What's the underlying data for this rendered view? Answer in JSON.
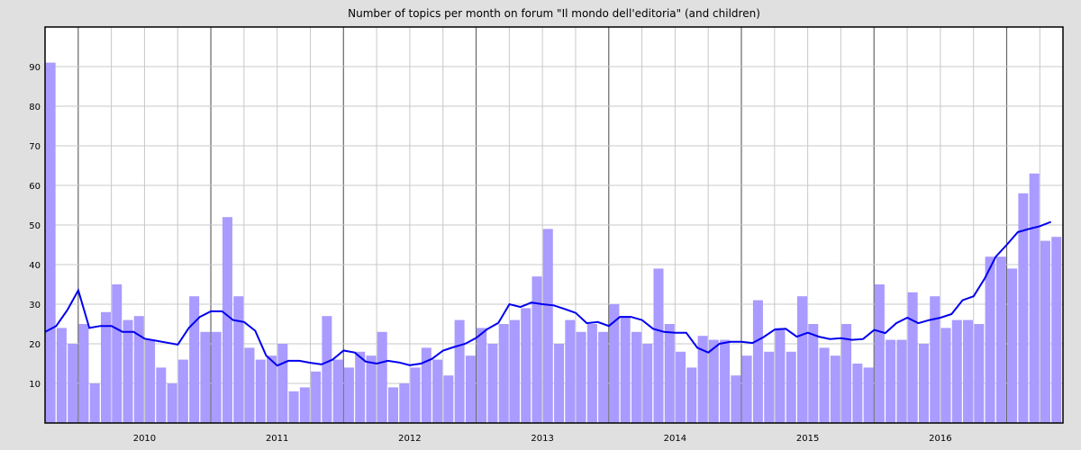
{
  "chart_data": {
    "type": "bar",
    "title": "Number of topics per month on forum \"Il mondo dell'editoria\" (and children)",
    "ylim": [
      0,
      100
    ],
    "yticks": [
      10,
      20,
      30,
      40,
      50,
      60,
      70,
      80,
      90
    ],
    "years": [
      "2010",
      "2011",
      "2012",
      "2013",
      "2014",
      "2015",
      "2016"
    ],
    "grid": true,
    "series": [
      {
        "type": "bar",
        "values": [
          91,
          24,
          20,
          25,
          10,
          28,
          35,
          26,
          27,
          21,
          14,
          10,
          16,
          32,
          23,
          23,
          52,
          32,
          19,
          16,
          17,
          20,
          8,
          9,
          13,
          27,
          16,
          14,
          18,
          17,
          23,
          9,
          10,
          14,
          19,
          16,
          12,
          26,
          17,
          24,
          20,
          25,
          26,
          29,
          37,
          49,
          20,
          26,
          23,
          25,
          23,
          30,
          27,
          23,
          20,
          39,
          25,
          18,
          14,
          22,
          21,
          21,
          12,
          17,
          31,
          18,
          24,
          18,
          32,
          25,
          19,
          17,
          25,
          15,
          14,
          35,
          21,
          21,
          33,
          20,
          32,
          24,
          26,
          26,
          25,
          42,
          42,
          39,
          58,
          63,
          46,
          47
        ]
      },
      {
        "type": "line",
        "values": [
          23,
          24.5,
          28.5,
          33.5,
          24,
          24.5,
          24.5,
          23,
          23,
          21.3,
          20.8,
          20.3,
          19.8,
          24,
          26.8,
          28.2,
          28.2,
          26,
          25.5,
          23.3,
          17,
          14.5,
          15.7,
          15.7,
          15.2,
          14.8,
          16,
          18.3,
          17.8,
          15.5,
          15,
          15.7,
          15.3,
          14.6,
          15,
          16.2,
          18.3,
          19.2,
          20,
          21.5,
          23.7,
          25.3,
          30,
          29.3,
          30.4,
          30,
          29.7,
          28.8,
          27.8,
          25.2,
          25.5,
          24.5,
          26.8,
          26.8,
          26,
          23.8,
          23,
          22.8,
          22.8,
          19,
          17.8,
          20,
          20.5,
          20.5,
          20.2,
          21.7,
          23.6,
          23.8,
          21.8,
          22.8,
          21.8,
          21.2,
          21.4,
          21,
          21.2,
          23.5,
          22.7,
          25.2,
          26.6,
          25.2,
          26,
          26.6,
          27.5,
          31,
          32,
          36.5,
          42,
          45,
          48.2,
          49,
          49.7,
          50.8
        ]
      }
    ]
  }
}
